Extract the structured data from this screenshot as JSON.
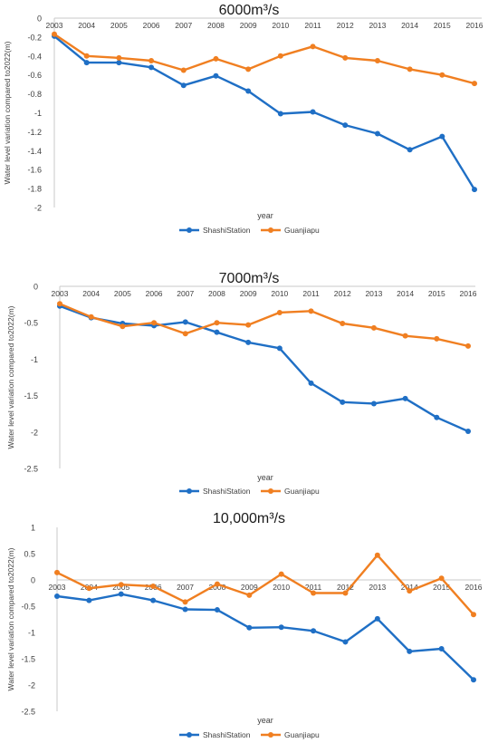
{
  "chart_data": [
    {
      "type": "line",
      "title": "6000m³/s",
      "xlabel": "year",
      "ylabel": "Water level variation compared to2022(m)",
      "categories": [
        "2003",
        "2004",
        "2005",
        "2006",
        "2007",
        "2008",
        "2009",
        "2010",
        "2011",
        "2012",
        "2013",
        "2014",
        "2015",
        "2016"
      ],
      "ylim": [
        -2,
        0
      ],
      "yticks": [
        0,
        -0.2,
        -0.4,
        -0.6,
        -0.8,
        -1,
        -1.2,
        -1.4,
        -1.6,
        -1.8,
        -2
      ],
      "ytick_labels": [
        "0",
        "-0.2",
        "-0.4",
        "-0.6",
        "-0.8",
        "-1",
        "-1.2",
        "-1.4",
        "-1.6",
        "-1.8",
        "-2"
      ],
      "grid": false,
      "legend": "bottom",
      "series": [
        {
          "name": "ShashiStation",
          "color": "#1F6FC5",
          "values": [
            -0.19,
            -0.47,
            -0.47,
            -0.52,
            -0.71,
            -0.61,
            -0.77,
            -1.01,
            -0.99,
            -1.13,
            -1.22,
            -1.39,
            -1.25,
            -1.81
          ]
        },
        {
          "name": "Guanjiapu",
          "color": "#F07F21",
          "values": [
            -0.17,
            -0.4,
            -0.42,
            -0.45,
            -0.55,
            -0.43,
            -0.54,
            -0.4,
            -0.3,
            -0.42,
            -0.45,
            -0.54,
            -0.6,
            -0.69
          ]
        }
      ]
    },
    {
      "type": "line",
      "title": "7000m³/s",
      "xlabel": "year",
      "ylabel": "Water level variation compared to2022(m)",
      "categories": [
        "2003",
        "2004",
        "2005",
        "2006",
        "2007",
        "2008",
        "2009",
        "2010",
        "2011",
        "2012",
        "2013",
        "2014",
        "2015",
        "2016"
      ],
      "ylim": [
        -2.5,
        0
      ],
      "yticks": [
        0,
        -0.5,
        -1,
        -1.5,
        -2,
        -2.5
      ],
      "ytick_labels": [
        "0",
        "-0.5",
        "-1",
        "-1.5",
        "-2",
        "-2.5"
      ],
      "grid": false,
      "legend": "bottom",
      "series": [
        {
          "name": "ShashiStation",
          "color": "#1F6FC5",
          "values": [
            -0.27,
            -0.43,
            -0.51,
            -0.54,
            -0.49,
            -0.63,
            -0.77,
            -0.85,
            -1.33,
            -1.59,
            -1.61,
            -1.54,
            -1.8,
            -1.99
          ]
        },
        {
          "name": "Guanjiapu",
          "color": "#F07F21",
          "values": [
            -0.24,
            -0.42,
            -0.55,
            -0.5,
            -0.65,
            -0.5,
            -0.53,
            -0.36,
            -0.34,
            -0.51,
            -0.57,
            -0.68,
            -0.72,
            -0.82
          ]
        }
      ]
    },
    {
      "type": "line",
      "title": "10,000m³/s",
      "xlabel": "year",
      "ylabel": "Water level variation compared to2022(m)",
      "categories": [
        "2003",
        "2004",
        "2005",
        "2006",
        "2007",
        "2008",
        "2009",
        "2010",
        "2011",
        "2012",
        "2013",
        "2014",
        "2015",
        "2016"
      ],
      "ylim": [
        -2.5,
        1
      ],
      "yticks": [
        1,
        0.5,
        0,
        -0.5,
        -1,
        -1.5,
        -2,
        -2.5
      ],
      "ytick_labels": [
        "1",
        "0.5",
        "0",
        "-0.5",
        "-1",
        "-1.5",
        "-2",
        "-2.5"
      ],
      "grid": false,
      "legend": "bottom",
      "series": [
        {
          "name": "ShashiStation",
          "color": "#1F6FC5",
          "values": [
            -0.31,
            -0.39,
            -0.27,
            -0.39,
            -0.56,
            -0.57,
            -0.91,
            -0.9,
            -0.97,
            -1.18,
            -0.74,
            -1.36,
            -1.31,
            -1.9
          ]
        },
        {
          "name": "Guanjiapu",
          "color": "#F07F21",
          "values": [
            0.14,
            -0.16,
            -0.09,
            -0.12,
            -0.42,
            -0.08,
            -0.29,
            0.11,
            -0.25,
            -0.25,
            0.47,
            -0.21,
            0.03,
            -0.66
          ]
        }
      ]
    }
  ]
}
